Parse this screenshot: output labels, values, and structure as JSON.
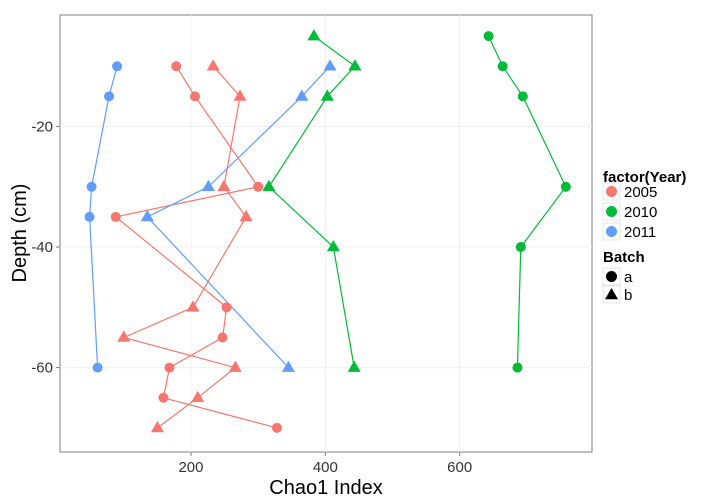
{
  "chart_data": {
    "type": "scatter",
    "title": "",
    "xlabel": "Chao1 Index",
    "ylabel": "Depth (cm)",
    "xlim": [
      5,
      797
    ],
    "ylim": [
      -74,
      -1.5
    ],
    "x_ticks": [
      200,
      400,
      600
    ],
    "y_ticks": [
      -20,
      -40,
      -60
    ],
    "x_tick_labels": [
      "200",
      "400",
      "600"
    ],
    "y_tick_labels": [
      "-20",
      "-40",
      "-60"
    ],
    "grid": true,
    "legend_position": "right",
    "colors": {
      "2005": "#F8766D",
      "2010": "#00BA38",
      "2011": "#619CFF"
    },
    "legend": {
      "color_title": "factor(Year)",
      "color_items": [
        "2005",
        "2010",
        "2011"
      ],
      "shape_title": "Batch",
      "shape_items": [
        {
          "label": "a",
          "shape": "circle"
        },
        {
          "label": "b",
          "shape": "triangle"
        }
      ]
    },
    "series": [
      {
        "year": "2005",
        "batch": "a",
        "points": [
          [
            178,
            -10
          ],
          [
            206,
            -15
          ],
          [
            300,
            -30
          ],
          [
            88,
            -35
          ],
          [
            253,
            -50
          ],
          [
            247,
            -55
          ],
          [
            168,
            -60
          ],
          [
            159,
            -65
          ],
          [
            328,
            -70
          ]
        ]
      },
      {
        "year": "2005",
        "batch": "b",
        "points": [
          [
            233,
            -10
          ],
          [
            273,
            -15
          ],
          [
            249,
            -30
          ],
          [
            282,
            -35
          ],
          [
            203,
            -50
          ],
          [
            100,
            -55
          ],
          [
            266,
            -60
          ],
          [
            210,
            -65
          ],
          [
            150,
            -70
          ]
        ]
      },
      {
        "year": "2010",
        "batch": "a",
        "points": [
          [
            643,
            -5
          ],
          [
            664,
            -10
          ],
          [
            694,
            -15
          ],
          [
            758,
            -30
          ],
          [
            691,
            -40
          ],
          [
            686,
            -60
          ]
        ]
      },
      {
        "year": "2010",
        "batch": "b",
        "points": [
          [
            383,
            -5
          ],
          [
            444,
            -10
          ],
          [
            403,
            -15
          ],
          [
            316,
            -30
          ],
          [
            412,
            -40
          ],
          [
            443,
            -60
          ]
        ]
      },
      {
        "year": "2011",
        "batch": "a",
        "points": [
          [
            90,
            -10
          ],
          [
            78,
            -15
          ],
          [
            52,
            -30
          ],
          [
            49,
            -35
          ],
          [
            61,
            -60
          ]
        ]
      },
      {
        "year": "2011",
        "batch": "b",
        "points": [
          [
            407,
            -10
          ],
          [
            365,
            -15
          ],
          [
            226,
            -30
          ],
          [
            135,
            -35
          ],
          [
            345,
            -60
          ]
        ]
      }
    ]
  }
}
